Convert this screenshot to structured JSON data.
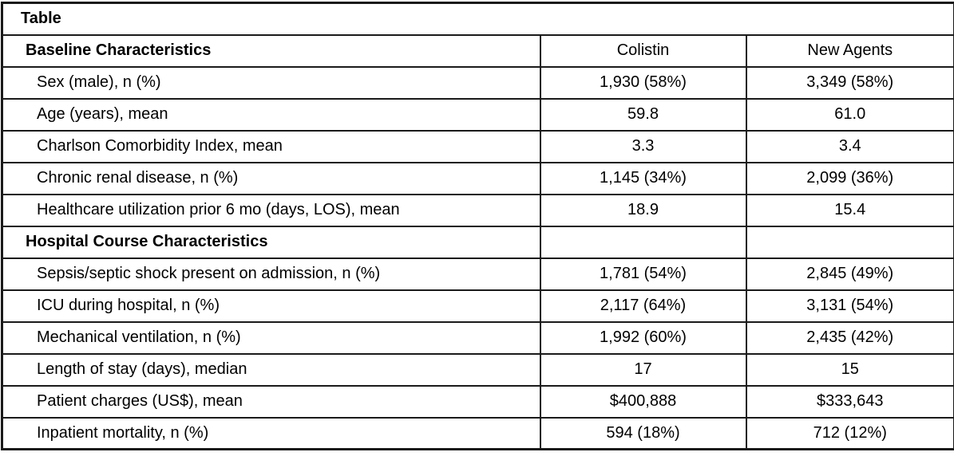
{
  "table": {
    "title": "Table",
    "header": {
      "characteristic": "Baseline Characteristics",
      "colistin": "Colistin",
      "new_agents": "New Agents"
    },
    "rows": [
      {
        "label": "Sex (male), n (%)",
        "colistin": "1,930 (58%)",
        "new_agents": "3,349 (58%)"
      },
      {
        "label": "Age (years), mean",
        "colistin": "59.8",
        "new_agents": "61.0"
      },
      {
        "label": "Charlson Comorbidity Index, mean",
        "colistin": "3.3",
        "new_agents": "3.4"
      },
      {
        "label": "Chronic renal disease, n (%)",
        "colistin": "1,145 (34%)",
        "new_agents": "2,099 (36%)"
      },
      {
        "label": "Healthcare utilization prior 6 mo (days, LOS), mean",
        "colistin": "18.9",
        "new_agents": "15.4"
      },
      {
        "label": "Hospital Course Characteristics",
        "colistin": "",
        "new_agents": ""
      },
      {
        "label": "Sepsis/septic shock present on admission, n (%)",
        "colistin": "1,781 (54%)",
        "new_agents": "2,845 (49%)"
      },
      {
        "label": "ICU during hospital, n (%)",
        "colistin": "2,117 (64%)",
        "new_agents": "3,131 (54%)"
      },
      {
        "label": "Mechanical ventilation, n (%)",
        "colistin": "1,992 (60%)",
        "new_agents": "2,435 (42%)"
      },
      {
        "label": "Length of stay (days), median",
        "colistin": "17",
        "new_agents": "15"
      },
      {
        "label": "Patient charges (US$), mean",
        "colistin": "$400,888",
        "new_agents": "$333,643"
      },
      {
        "label": "Inpatient mortality, n (%)",
        "colistin": "594 (18%)",
        "new_agents": "712 (12%)"
      }
    ],
    "colors": {
      "border": "#1a1a1a",
      "text": "#000000",
      "background": "#ffffff"
    }
  },
  "chart_data": {
    "type": "table",
    "title": "Table",
    "columns": [
      "Baseline Characteristics",
      "Colistin",
      "New Agents"
    ],
    "rows": [
      [
        "Sex (male), n (%)",
        "1,930 (58%)",
        "3,349 (58%)"
      ],
      [
        "Age (years), mean",
        "59.8",
        "61.0"
      ],
      [
        "Charlson Comorbidity Index, mean",
        "3.3",
        "3.4"
      ],
      [
        "Chronic renal disease, n (%)",
        "1,145 (34%)",
        "2,099 (36%)"
      ],
      [
        "Healthcare utilization prior 6 mo (days, LOS), mean",
        "18.9",
        "15.4"
      ],
      [
        "Hospital Course Characteristics",
        "",
        ""
      ],
      [
        "Sepsis/septic shock present on admission, n (%)",
        "1,781 (54%)",
        "2,845 (49%)"
      ],
      [
        "ICU during hospital, n (%)",
        "2,117 (64%)",
        "3,131 (54%)"
      ],
      [
        "Mechanical ventilation, n (%)",
        "1,992 (60%)",
        "2,435 (42%)"
      ],
      [
        "Length of stay (days), median",
        "17",
        "15"
      ],
      [
        "Patient charges (US$), mean",
        "$400,888",
        "$333,643"
      ],
      [
        "Inpatient mortality, n (%)",
        "594 (18%)",
        "712 (12%)"
      ]
    ]
  }
}
